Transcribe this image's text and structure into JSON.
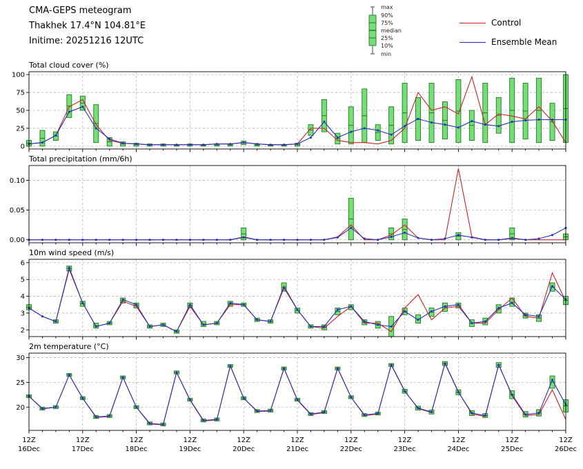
{
  "header": {
    "title": "CMA-GEPS meteogram",
    "location": "Thakhek 17.4°N 104.81°E",
    "inittime": "Initime: 20251216 12UTC"
  },
  "legend": {
    "box_labels": [
      "max",
      "90%",
      "75%",
      "median",
      "25%",
      "10%",
      "min"
    ],
    "series": [
      {
        "label": "Control",
        "color": "#cc2222"
      },
      {
        "label": "Ensemble Mean",
        "color": "#2233bb"
      }
    ]
  },
  "chart_data": {
    "type": "line",
    "title": "CMA-GEPS meteogram",
    "x_axis": {
      "steps": 41,
      "hours_per_step": 6,
      "major_tick_indices": [
        0,
        4,
        8,
        12,
        16,
        20,
        24,
        28,
        32,
        36,
        40
      ],
      "major_tick_labels": [
        {
          "time": "12Z",
          "date": "16Dec"
        },
        {
          "time": "12Z",
          "date": "17Dec"
        },
        {
          "time": "12Z",
          "date": "18Dec"
        },
        {
          "time": "12Z",
          "date": "19Dec"
        },
        {
          "time": "12Z",
          "date": "20Dec"
        },
        {
          "time": "12Z",
          "date": "21Dec"
        },
        {
          "time": "12Z",
          "date": "22Dec"
        },
        {
          "time": "12Z",
          "date": "23Dec"
        },
        {
          "time": "12Z",
          "date": "24Dec"
        },
        {
          "time": "12Z",
          "date": "25Dec"
        },
        {
          "time": "12Z",
          "date": "26Dec"
        }
      ]
    },
    "series_colors": {
      "control": "#cc2222",
      "mean": "#2233bb"
    },
    "box_style": {
      "fill": "#77dd77",
      "stroke": "#1f7a1f"
    },
    "grid_color": "#b5b5b5",
    "panels": [
      {
        "id": "total-cloud-cover",
        "title": "Total cloud cover (%)",
        "ylim": [
          -4,
          104
        ],
        "yticks": [
          0,
          25,
          50,
          75,
          100
        ],
        "ytick_labels": [
          "0",
          "25",
          "50",
          "75",
          "100"
        ],
        "control": [
          3,
          5,
          15,
          55,
          65,
          30,
          8,
          4,
          3,
          2,
          2,
          2,
          2,
          2,
          3,
          3,
          5,
          3,
          2,
          2,
          3,
          25,
          25,
          8,
          5,
          5,
          3,
          8,
          25,
          75,
          50,
          55,
          45,
          97,
          30,
          45,
          42,
          38,
          55,
          35,
          5
        ],
        "mean": [
          3,
          5,
          15,
          48,
          55,
          25,
          10,
          4,
          3,
          2,
          2,
          2,
          2,
          2,
          3,
          3,
          5,
          3,
          2,
          2,
          3,
          12,
          34,
          12,
          20,
          25,
          22,
          16,
          28,
          38,
          33,
          30,
          26,
          35,
          30,
          28,
          34,
          36,
          37,
          37,
          37
        ],
        "boxes": [
          [
            0,
            8
          ],
          [
            0,
            22
          ],
          [
            8,
            20
          ],
          [
            40,
            72
          ],
          [
            50,
            70
          ],
          [
            5,
            58
          ],
          [
            0,
            12
          ],
          [
            0,
            6
          ],
          [
            0,
            4
          ],
          [
            0,
            3
          ],
          [
            0,
            3
          ],
          [
            0,
            2
          ],
          [
            0,
            3
          ],
          [
            0,
            2
          ],
          [
            0,
            3
          ],
          [
            0,
            3
          ],
          [
            2,
            7
          ],
          [
            0,
            3
          ],
          [
            0,
            2
          ],
          [
            0,
            2
          ],
          [
            0,
            4
          ],
          [
            15,
            30
          ],
          [
            20,
            65
          ],
          [
            3,
            18
          ],
          [
            3,
            55
          ],
          [
            5,
            80
          ],
          [
            8,
            30
          ],
          [
            3,
            55
          ],
          [
            5,
            88
          ],
          [
            8,
            68
          ],
          [
            5,
            88
          ],
          [
            10,
            62
          ],
          [
            5,
            93
          ],
          [
            8,
            50
          ],
          [
            5,
            88
          ],
          [
            18,
            68
          ],
          [
            5,
            95
          ],
          [
            10,
            88
          ],
          [
            5,
            95
          ],
          [
            8,
            60
          ],
          [
            5,
            100
          ]
        ]
      },
      {
        "id": "total-precipitation",
        "title": "Total precipitation (mm/6h)",
        "ylim": [
          -0.005,
          0.125
        ],
        "yticks": [
          0,
          0.05,
          0.1
        ],
        "ytick_labels": [
          "0.00",
          "0.05",
          "0.10"
        ],
        "control": [
          0,
          0,
          0,
          0,
          0,
          0,
          0,
          0,
          0,
          0,
          0,
          0,
          0,
          0,
          0,
          0,
          0.005,
          0,
          0,
          0,
          0,
          0,
          0,
          0.005,
          0.025,
          0,
          0,
          0.008,
          0.025,
          0.003,
          0,
          0,
          0.12,
          0.005,
          0,
          0,
          0.002,
          0,
          0,
          0,
          0
        ],
        "mean": [
          0,
          0,
          0,
          0,
          0,
          0,
          0,
          0,
          0,
          0,
          0,
          0,
          0,
          0,
          0,
          0,
          0.004,
          0,
          0,
          0,
          0,
          0,
          0,
          0.004,
          0.02,
          0.002,
          0,
          0.005,
          0.012,
          0.003,
          0,
          0.002,
          0.008,
          0.004,
          0,
          0,
          0.003,
          0,
          0.002,
          0.008,
          0.02
        ],
        "boxes": [
          null,
          null,
          null,
          null,
          null,
          null,
          null,
          null,
          null,
          null,
          null,
          null,
          null,
          null,
          null,
          null,
          [
            0,
            0.02
          ],
          null,
          null,
          null,
          null,
          null,
          null,
          null,
          [
            0,
            0.07
          ],
          null,
          null,
          [
            0,
            0.02
          ],
          [
            0,
            0.035
          ],
          null,
          null,
          null,
          [
            0,
            0.012
          ],
          null,
          null,
          null,
          [
            0,
            0.02
          ],
          null,
          null,
          null,
          [
            0,
            0.01
          ]
        ]
      },
      {
        "id": "wind-speed-10m",
        "title": "10m wind speed (m/s)",
        "ylim": [
          1.6,
          6.2
        ],
        "yticks": [
          2,
          3,
          4,
          5,
          6
        ],
        "ytick_labels": [
          "2",
          "3",
          "4",
          "5",
          "6"
        ],
        "control": [
          3.3,
          2.8,
          2.5,
          5.6,
          3.6,
          2.2,
          2.4,
          3.7,
          3.4,
          2.2,
          2.3,
          1.9,
          3.4,
          2.3,
          2.4,
          3.5,
          3.5,
          2.6,
          2.5,
          4.6,
          3.2,
          2.2,
          2.1,
          2.8,
          3.4,
          2.4,
          2.4,
          1.9,
          3.3,
          4.1,
          2.6,
          3.3,
          3.4,
          2.4,
          2.4,
          3.2,
          3.9,
          2.8,
          2.7,
          5.4,
          3.7
        ],
        "mean": [
          3.3,
          2.8,
          2.5,
          5.7,
          3.6,
          2.2,
          2.4,
          3.8,
          3.5,
          2.2,
          2.3,
          1.9,
          3.5,
          2.3,
          2.4,
          3.6,
          3.5,
          2.6,
          2.5,
          4.5,
          3.2,
          2.2,
          2.2,
          3.2,
          3.4,
          2.5,
          2.3,
          2.2,
          3.1,
          2.6,
          3.1,
          3.4,
          3.5,
          2.4,
          2.5,
          3.3,
          3.6,
          2.9,
          2.8,
          4.6,
          3.8
        ],
        "boxes": [
          [
            3.2,
            3.5
          ],
          null,
          [
            2.4,
            2.6
          ],
          [
            5.5,
            5.8
          ],
          [
            3.4,
            3.7
          ],
          [
            2.1,
            2.4
          ],
          [
            2.3,
            2.5
          ],
          [
            3.6,
            3.9
          ],
          [
            3.3,
            3.6
          ],
          [
            2.1,
            2.3
          ],
          [
            2.2,
            2.4
          ],
          [
            1.8,
            2.0
          ],
          [
            3.3,
            3.6
          ],
          [
            2.2,
            2.5
          ],
          [
            2.3,
            2.5
          ],
          [
            3.4,
            3.7
          ],
          [
            3.4,
            3.6
          ],
          [
            2.5,
            2.7
          ],
          [
            2.4,
            2.6
          ],
          [
            4.3,
            4.8
          ],
          [
            3.0,
            3.3
          ],
          [
            2.1,
            2.3
          ],
          [
            2.0,
            2.3
          ],
          [
            2.9,
            3.3
          ],
          [
            3.2,
            3.5
          ],
          [
            2.3,
            2.6
          ],
          [
            2.1,
            2.5
          ],
          [
            1.6,
            2.8
          ],
          [
            2.9,
            3.3
          ],
          [
            2.4,
            2.9
          ],
          [
            2.8,
            3.3
          ],
          [
            3.1,
            3.6
          ],
          [
            3.3,
            3.6
          ],
          [
            2.2,
            2.6
          ],
          [
            2.3,
            2.7
          ],
          [
            3.0,
            3.5
          ],
          [
            3.4,
            3.9
          ],
          [
            2.7,
            3.0
          ],
          [
            2.5,
            2.9
          ],
          [
            4.3,
            4.8
          ],
          [
            3.5,
            4.0
          ]
        ]
      },
      {
        "id": "temperature-2m",
        "title": "2m temperature (°C)",
        "ylim": [
          15.3,
          30.9
        ],
        "yticks": [
          20,
          25,
          30
        ],
        "ytick_labels": [
          "20",
          "25",
          "30"
        ],
        "control": [
          22.2,
          19.6,
          20.0,
          26.5,
          21.8,
          17.9,
          18.1,
          26.0,
          20.0,
          16.6,
          16.4,
          27.0,
          21.4,
          17.2,
          17.4,
          28.4,
          21.8,
          19.1,
          19.2,
          27.9,
          21.4,
          18.5,
          18.9,
          27.9,
          22.0,
          18.3,
          18.6,
          28.6,
          23.3,
          19.7,
          18.9,
          28.9,
          23.1,
          18.6,
          18.1,
          28.6,
          22.3,
          18.3,
          18.5,
          23.5,
          17.5
        ],
        "mean": [
          22.2,
          19.7,
          20.0,
          26.5,
          21.8,
          18.0,
          18.2,
          26.0,
          20.0,
          16.7,
          16.5,
          27.0,
          21.5,
          17.3,
          17.5,
          28.3,
          21.8,
          19.2,
          19.3,
          27.8,
          21.5,
          18.6,
          19.0,
          27.8,
          22.0,
          18.4,
          18.7,
          28.5,
          23.2,
          19.8,
          19.0,
          28.8,
          23.0,
          18.8,
          18.3,
          28.5,
          22.5,
          18.5,
          18.8,
          25.5,
          20.5
        ],
        "boxes": [
          [
            21.9,
            22.5
          ],
          [
            19.4,
            20.0
          ],
          [
            19.7,
            20.3
          ],
          [
            26.2,
            26.8
          ],
          [
            21.5,
            22.1
          ],
          [
            17.7,
            18.3
          ],
          [
            17.9,
            18.5
          ],
          [
            25.7,
            26.3
          ],
          [
            19.7,
            20.3
          ],
          [
            16.4,
            17.0
          ],
          [
            16.2,
            16.8
          ],
          [
            26.7,
            27.3
          ],
          [
            21.2,
            21.8
          ],
          [
            17.0,
            17.6
          ],
          [
            17.2,
            17.8
          ],
          [
            28.0,
            28.6
          ],
          [
            21.5,
            22.1
          ],
          [
            18.9,
            19.5
          ],
          [
            19.0,
            19.6
          ],
          [
            27.5,
            28.1
          ],
          [
            21.2,
            21.8
          ],
          [
            18.3,
            18.9
          ],
          [
            18.7,
            19.3
          ],
          [
            27.5,
            28.1
          ],
          [
            21.7,
            22.3
          ],
          [
            18.1,
            18.7
          ],
          [
            18.4,
            19.0
          ],
          [
            28.2,
            28.8
          ],
          [
            22.8,
            23.6
          ],
          [
            19.4,
            20.2
          ],
          [
            18.6,
            19.4
          ],
          [
            28.4,
            29.2
          ],
          [
            22.5,
            23.5
          ],
          [
            18.3,
            19.3
          ],
          [
            17.9,
            18.7
          ],
          [
            28.0,
            29.0
          ],
          [
            21.7,
            23.3
          ],
          [
            18.0,
            19.1
          ],
          [
            18.2,
            19.5
          ],
          [
            23.8,
            26.3
          ],
          [
            19.0,
            21.5
          ]
        ]
      }
    ]
  }
}
